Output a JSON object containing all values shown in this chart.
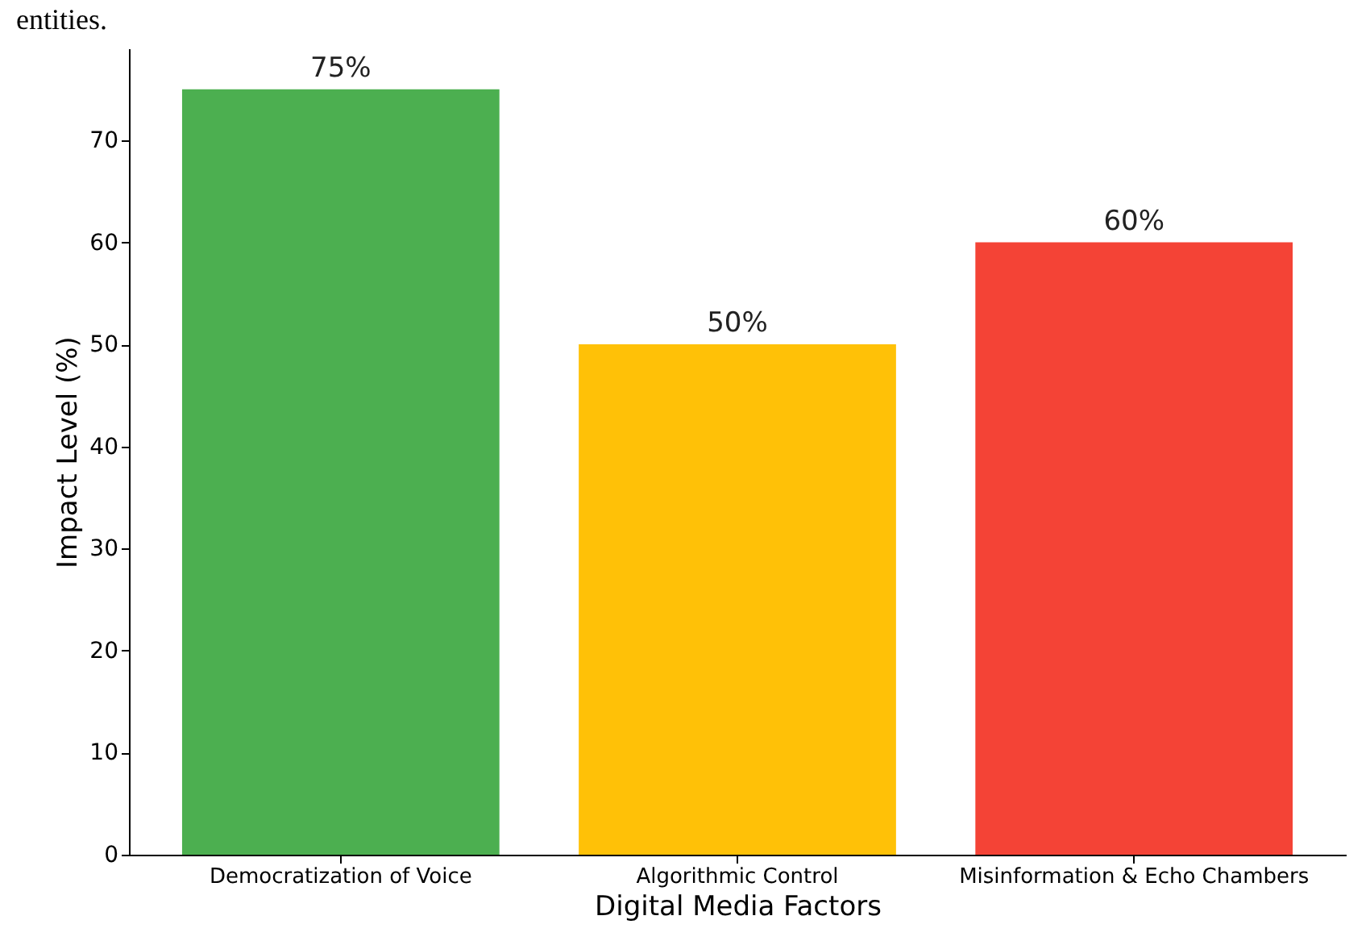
{
  "chart_data": {
    "type": "bar",
    "annotations": [
      "entities."
    ],
    "xlabel": "Digital Media Factors",
    "ylabel": "Impact Level (%)",
    "categories": [
      "Democratization of Voice",
      "Algorithmic Control",
      "Misinformation & Echo Chambers"
    ],
    "values": [
      75,
      50,
      60
    ],
    "colors": [
      "#4caf50",
      "#ffc107",
      "#f44336"
    ],
    "value_labels": [
      "75%",
      "50%",
      "60%"
    ],
    "ylim": [
      0,
      79
    ],
    "yticks": [
      0,
      10,
      20,
      30,
      40,
      50,
      60,
      70
    ],
    "grid": false
  }
}
